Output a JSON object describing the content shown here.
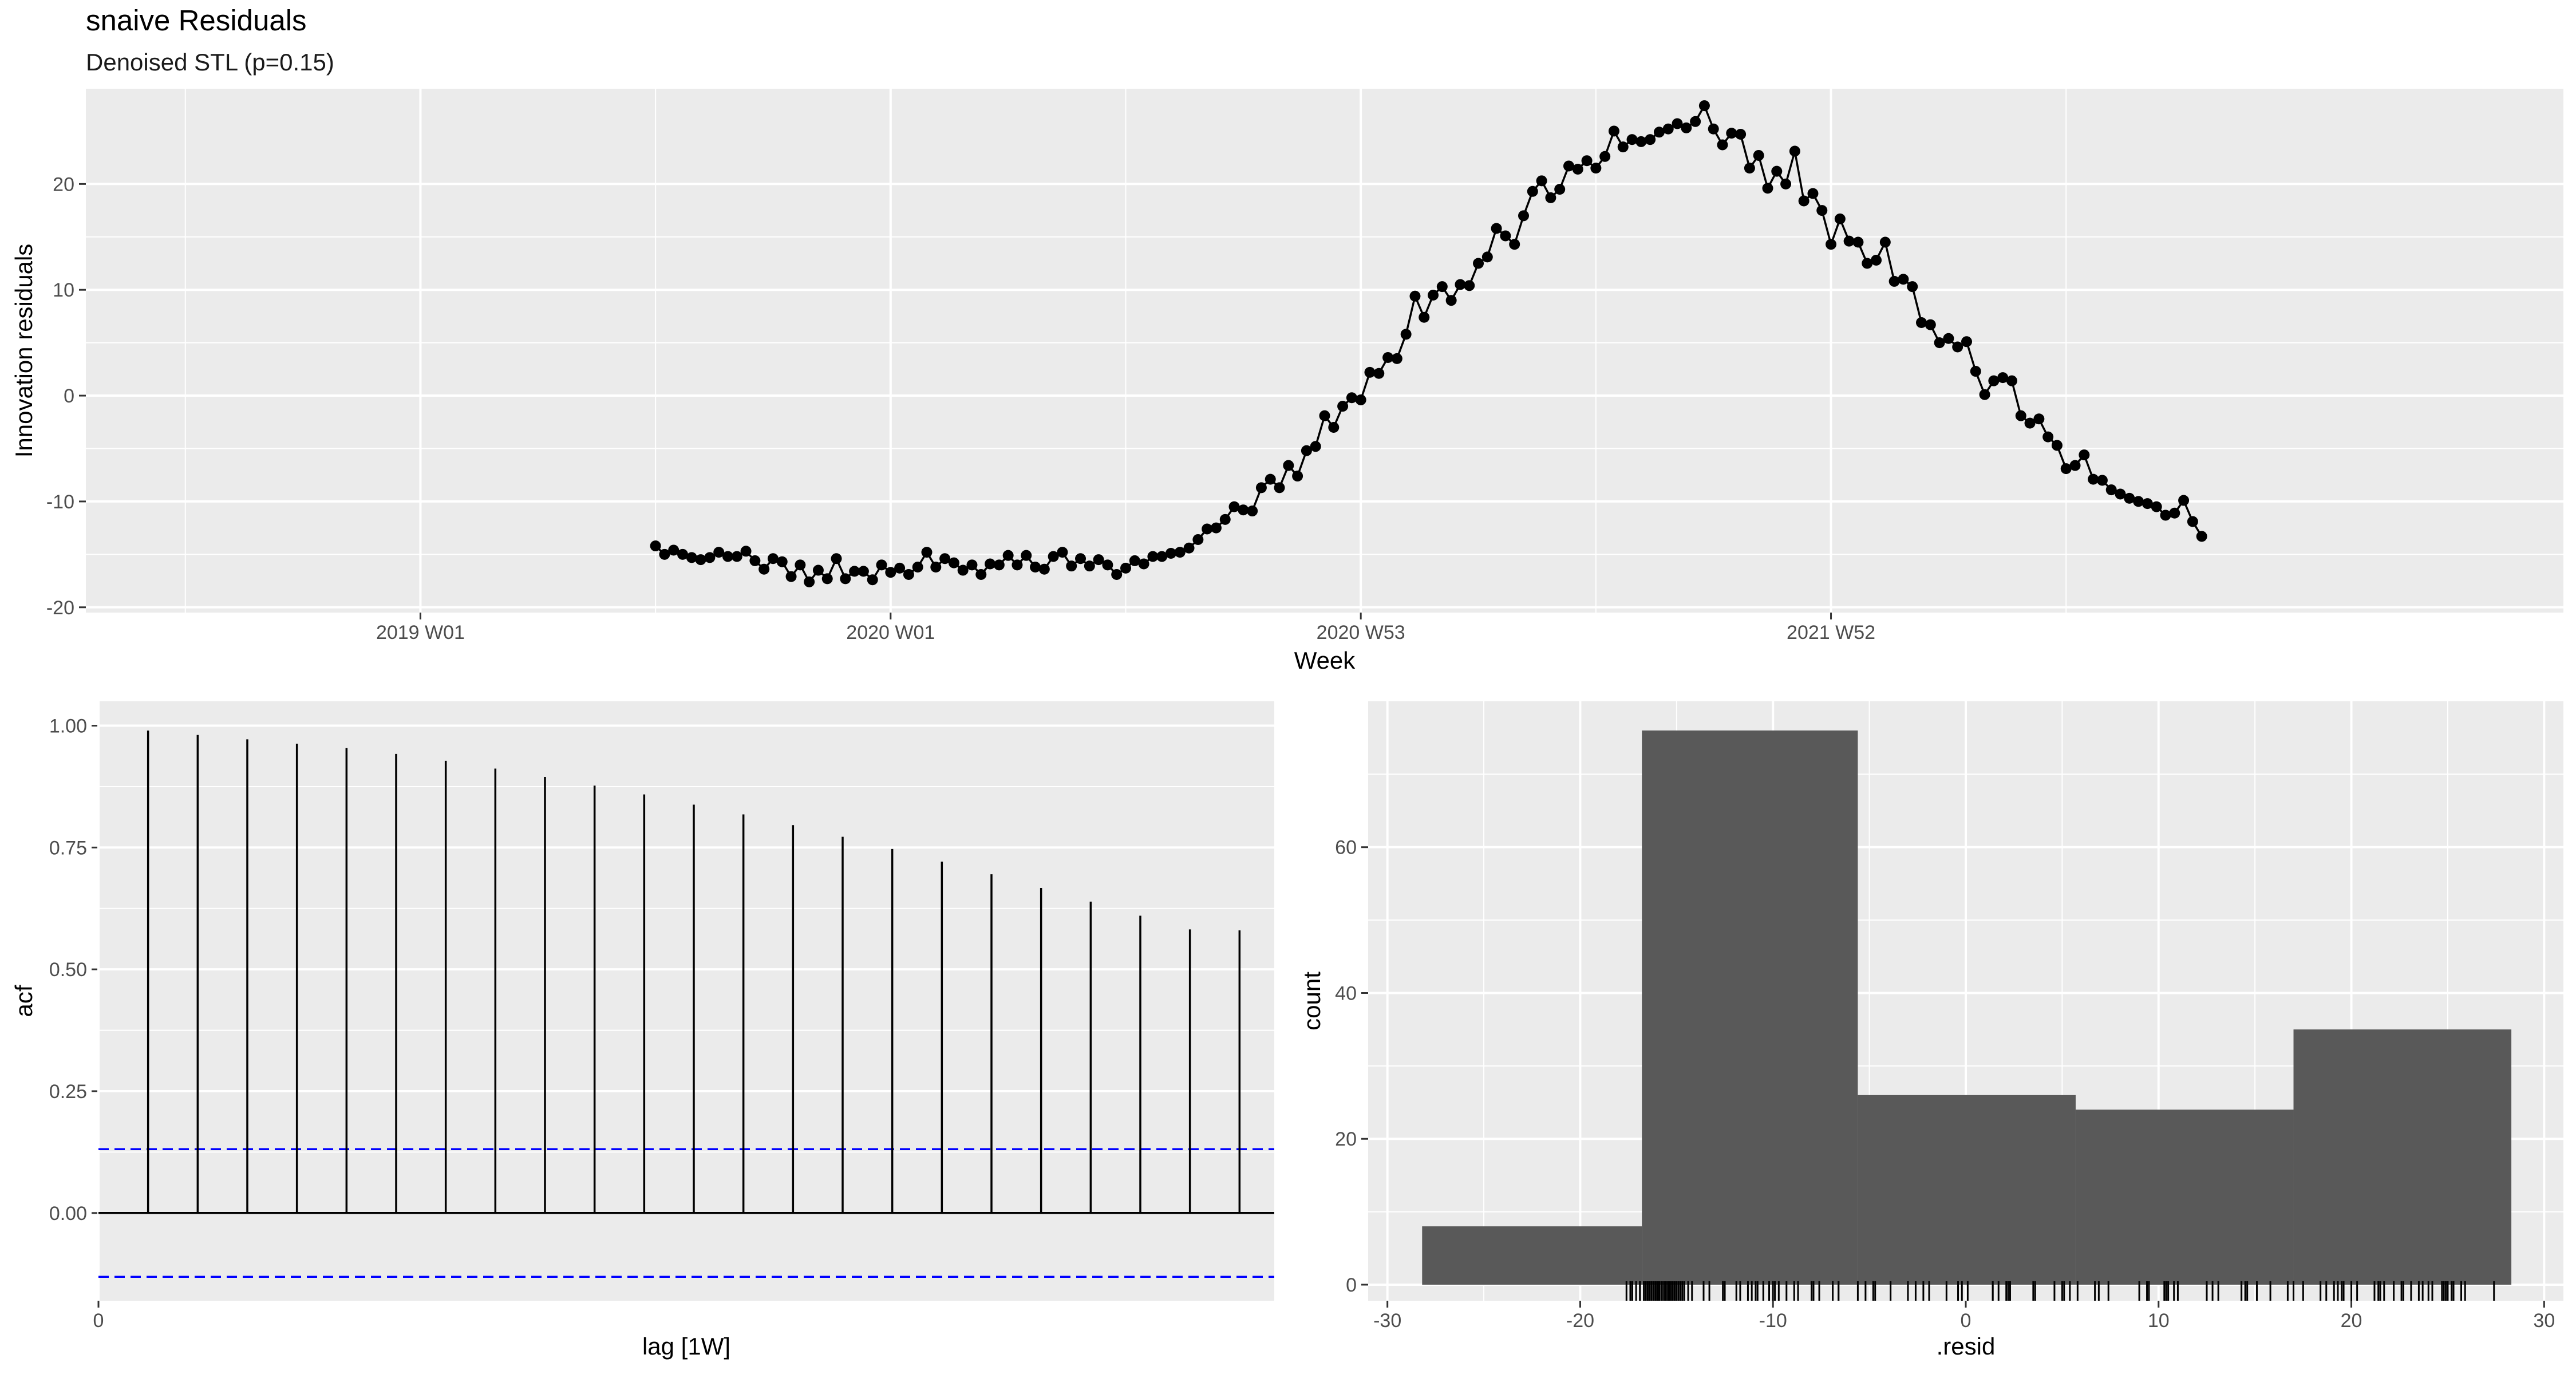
{
  "title": "snaive Residuals",
  "subtitle": "Denoised STL (p=0.15)",
  "colors": {
    "panel_bg": "#EBEBEB",
    "grid": "#FFFFFF",
    "series": "#000000",
    "ci_line": "#0000FF",
    "hist_fill": "#595959"
  },
  "chart_data": [
    {
      "type": "line",
      "name": "residual-timeseries",
      "xlabel": "Week",
      "ylabel": "Innovation residuals",
      "x_tick_labels": [
        "2019 W01",
        "2020 W01",
        "2020 W53",
        "2021 W52"
      ],
      "x_tick_weeks": [
        0,
        52,
        104,
        156
      ],
      "xlim_weeks": [
        -37,
        237
      ],
      "ylim": [
        -20.5,
        29
      ],
      "y_ticks": [
        -20,
        -10,
        0,
        10,
        20
      ],
      "x_start_label": "2019 W27",
      "points_marked": true,
      "values": [
        -14.2,
        -15.0,
        -14.6,
        -15.0,
        -15.3,
        -15.5,
        -15.3,
        -14.8,
        -15.2,
        -15.2,
        -14.7,
        -15.6,
        -16.4,
        -15.4,
        -15.7,
        -17.1,
        -16.0,
        -17.6,
        -16.5,
        -17.3,
        -15.4,
        -17.3,
        -16.6,
        -16.6,
        -17.4,
        -16.0,
        -16.7,
        -16.3,
        -16.9,
        -16.2,
        -14.8,
        -16.2,
        -15.4,
        -15.8,
        -16.5,
        -16.0,
        -16.9,
        -15.9,
        -16.0,
        -15.1,
        -16.0,
        -15.1,
        -16.2,
        -16.4,
        -15.2,
        -14.8,
        -16.1,
        -15.4,
        -16.1,
        -15.5,
        -16.0,
        -16.9,
        -16.3,
        -15.6,
        -15.9,
        -15.2,
        -15.2,
        -14.9,
        -14.8,
        -14.4,
        -13.6,
        -12.6,
        -12.5,
        -11.7,
        -10.5,
        -10.8,
        -10.9,
        -8.7,
        -7.9,
        -8.7,
        -6.6,
        -7.6,
        -5.2,
        -4.8,
        -1.9,
        -3.0,
        -1.0,
        -0.2,
        -0.4,
        2.2,
        2.1,
        3.6,
        3.5,
        5.8,
        9.4,
        7.4,
        9.5,
        10.3,
        9.0,
        10.5,
        10.4,
        12.5,
        13.1,
        15.8,
        15.1,
        14.3,
        17.0,
        19.3,
        20.3,
        18.7,
        19.5,
        21.7,
        21.4,
        22.2,
        21.5,
        22.6,
        25.0,
        23.5,
        24.2,
        24.0,
        24.2,
        24.9,
        25.2,
        25.7,
        25.3,
        25.9,
        27.4,
        25.2,
        23.7,
        24.8,
        24.7,
        21.5,
        22.7,
        19.6,
        21.2,
        20.0,
        23.1,
        18.4,
        19.1,
        17.5,
        14.3,
        16.7,
        14.6,
        14.5,
        12.5,
        12.8,
        14.5,
        10.8,
        11.0,
        10.3,
        6.9,
        6.7,
        5.0,
        5.4,
        4.6,
        5.1,
        2.3,
        0.1,
        1.4,
        1.7,
        1.4,
        -1.9,
        -2.6,
        -2.2,
        -3.9,
        -4.7,
        -6.9,
        -6.6,
        -5.6,
        -7.9,
        -8.0,
        -8.9,
        -9.3,
        -9.7,
        -10.0,
        -10.2,
        -10.5,
        -11.3,
        -11.1,
        -9.9,
        -11.9,
        -13.3
      ]
    },
    {
      "type": "bar",
      "name": "acf",
      "xlabel": "lag [1W]",
      "ylabel": "acf",
      "lags": [
        1,
        2,
        3,
        4,
        5,
        6,
        7,
        8,
        9,
        10,
        11,
        12,
        13,
        14,
        15,
        16,
        17,
        18,
        19,
        20,
        21,
        22,
        23
      ],
      "values": [
        0.99,
        0.981,
        0.972,
        0.963,
        0.954,
        0.942,
        0.928,
        0.912,
        0.895,
        0.877,
        0.859,
        0.838,
        0.818,
        0.796,
        0.772,
        0.747,
        0.721,
        0.695,
        0.667,
        0.639,
        0.61,
        0.582,
        0.58
      ],
      "ci_bounds": [
        0.131,
        -0.131
      ],
      "y_ticks": [
        0.0,
        0.25,
        0.5,
        0.75,
        1.0
      ],
      "y_tick_labels": [
        "0.00",
        "0.25",
        "0.50",
        "0.75",
        "1.00"
      ],
      "x_ticks": [
        0
      ],
      "x_tick_labels": [
        "0"
      ],
      "xlim": [
        0,
        23.7
      ],
      "ylim": [
        -0.18,
        1.05
      ]
    },
    {
      "type": "bar",
      "name": "histogram",
      "xlabel": ".resid",
      "ylabel": "count",
      "bins": [
        {
          "x0": -28.2,
          "x1": -16.8,
          "count": 8
        },
        {
          "x0": -16.8,
          "x1": -5.6,
          "count": 76
        },
        {
          "x0": -5.6,
          "x1": 5.7,
          "count": 26
        },
        {
          "x0": 5.7,
          "x1": 17.0,
          "count": 24
        },
        {
          "x0": 17.0,
          "x1": 28.3,
          "count": 35
        }
      ],
      "x_ticks": [
        -30,
        -20,
        -10,
        0,
        10,
        20,
        30
      ],
      "x_tick_labels": [
        "-30",
        "-20",
        "-10",
        "0",
        "10",
        "20",
        "30"
      ],
      "y_ticks": [
        0,
        20,
        40,
        60
      ],
      "y_tick_labels": [
        "0",
        "20",
        "40",
        "60"
      ],
      "xlim": [
        -31.0,
        31.0
      ],
      "ylim": [
        -2.2,
        80
      ],
      "rug": true
    }
  ]
}
